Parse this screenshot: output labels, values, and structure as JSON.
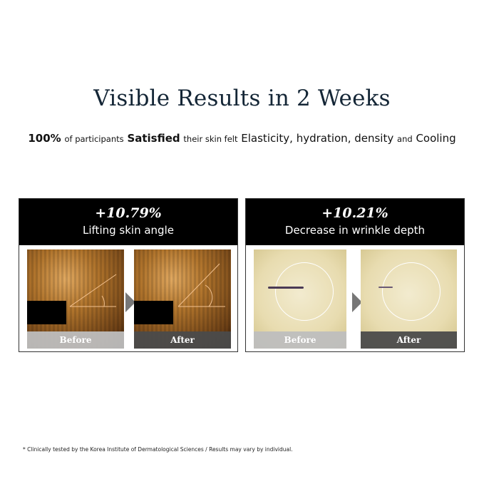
{
  "title": {
    "bold": "Visible Results",
    "rest": "in 2 Weeks"
  },
  "subtitle": {
    "p1": "100%",
    "p2": "of participants",
    "p3": "Satisfied",
    "p4": "their skin felt",
    "p5": "Elasticity, hydration, density",
    "p6": "and",
    "p7": "Cooling"
  },
  "panels": [
    {
      "percent": "+10.79%",
      "label": "Lifting skin angle",
      "before": "Before",
      "after": "After"
    },
    {
      "percent": "+10.21%",
      "label": "Decrease in wrinkle depth",
      "before": "Before",
      "after": "After"
    }
  ],
  "footnote": "* Clinically tested by the Korea Institute of Dermatological Sciences / Results may vary by individual."
}
